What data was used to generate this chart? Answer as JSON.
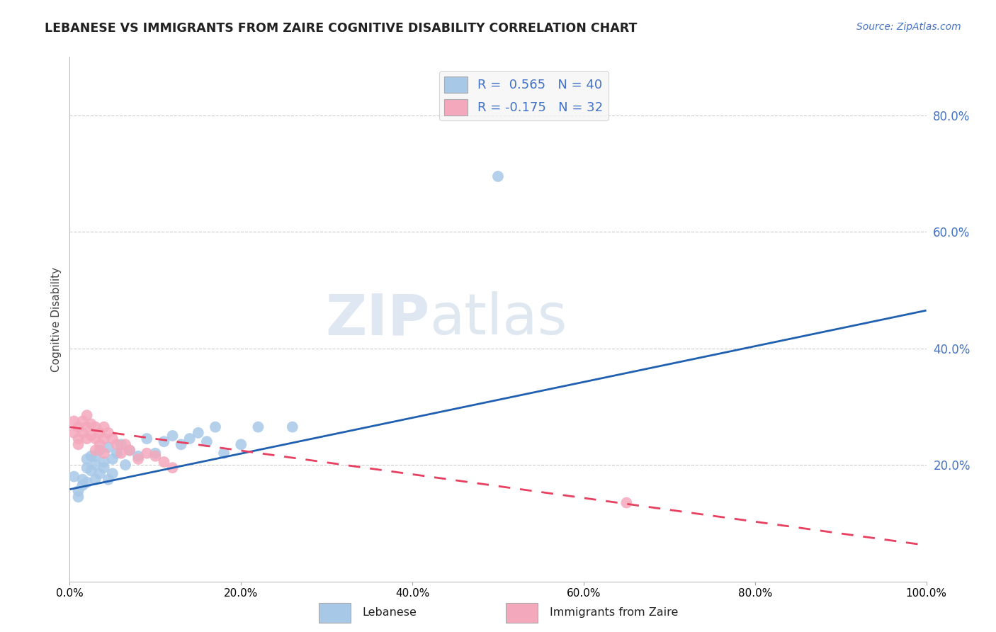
{
  "title": "LEBANESE VS IMMIGRANTS FROM ZAIRE COGNITIVE DISABILITY CORRELATION CHART",
  "source": "Source: ZipAtlas.com",
  "ylabel": "Cognitive Disability",
  "xlabel": "",
  "legend_label1": "Lebanese",
  "legend_label2": "Immigrants from Zaire",
  "r1": 0.565,
  "n1": 40,
  "r2": -0.175,
  "n2": 32,
  "color1": "#a8c8e8",
  "color2": "#f4a8bc",
  "line_color1": "#2060b0",
  "line_color2": "#e84060",
  "background": "#ffffff",
  "xlim": [
    0.0,
    1.0
  ],
  "ylim": [
    0.0,
    0.9
  ],
  "xticks": [
    0.0,
    0.2,
    0.4,
    0.6,
    0.8,
    1.0
  ],
  "yticks_right": [
    0.2,
    0.4,
    0.6,
    0.8
  ],
  "blue_x": [
    0.005,
    0.01,
    0.01,
    0.015,
    0.015,
    0.02,
    0.02,
    0.02,
    0.025,
    0.025,
    0.03,
    0.03,
    0.03,
    0.035,
    0.035,
    0.04,
    0.04,
    0.045,
    0.045,
    0.05,
    0.05,
    0.055,
    0.06,
    0.065,
    0.07,
    0.08,
    0.09,
    0.1,
    0.11,
    0.12,
    0.13,
    0.14,
    0.15,
    0.16,
    0.17,
    0.18,
    0.2,
    0.22,
    0.5,
    0.26
  ],
  "blue_y": [
    0.18,
    0.155,
    0.145,
    0.175,
    0.165,
    0.21,
    0.195,
    0.17,
    0.215,
    0.19,
    0.175,
    0.2,
    0.215,
    0.225,
    0.185,
    0.205,
    0.195,
    0.23,
    0.175,
    0.21,
    0.185,
    0.22,
    0.235,
    0.2,
    0.225,
    0.215,
    0.245,
    0.22,
    0.24,
    0.25,
    0.235,
    0.245,
    0.255,
    0.24,
    0.265,
    0.22,
    0.235,
    0.265,
    0.695,
    0.265
  ],
  "pink_x": [
    0.005,
    0.005,
    0.01,
    0.01,
    0.01,
    0.015,
    0.015,
    0.02,
    0.02,
    0.02,
    0.025,
    0.025,
    0.03,
    0.03,
    0.03,
    0.035,
    0.035,
    0.04,
    0.04,
    0.04,
    0.045,
    0.05,
    0.055,
    0.06,
    0.065,
    0.07,
    0.08,
    0.09,
    0.1,
    0.11,
    0.65,
    0.12
  ],
  "pink_y": [
    0.255,
    0.275,
    0.245,
    0.265,
    0.235,
    0.275,
    0.255,
    0.285,
    0.265,
    0.245,
    0.27,
    0.25,
    0.265,
    0.245,
    0.225,
    0.255,
    0.235,
    0.265,
    0.245,
    0.22,
    0.255,
    0.245,
    0.235,
    0.22,
    0.235,
    0.225,
    0.21,
    0.22,
    0.215,
    0.205,
    0.135,
    0.195
  ],
  "line1_x0": 0.0,
  "line1_y0": 0.158,
  "line1_x1": 1.0,
  "line1_y1": 0.465,
  "line2_x0": 0.0,
  "line2_y0": 0.265,
  "line2_x1": 1.0,
  "line2_y1": 0.062
}
